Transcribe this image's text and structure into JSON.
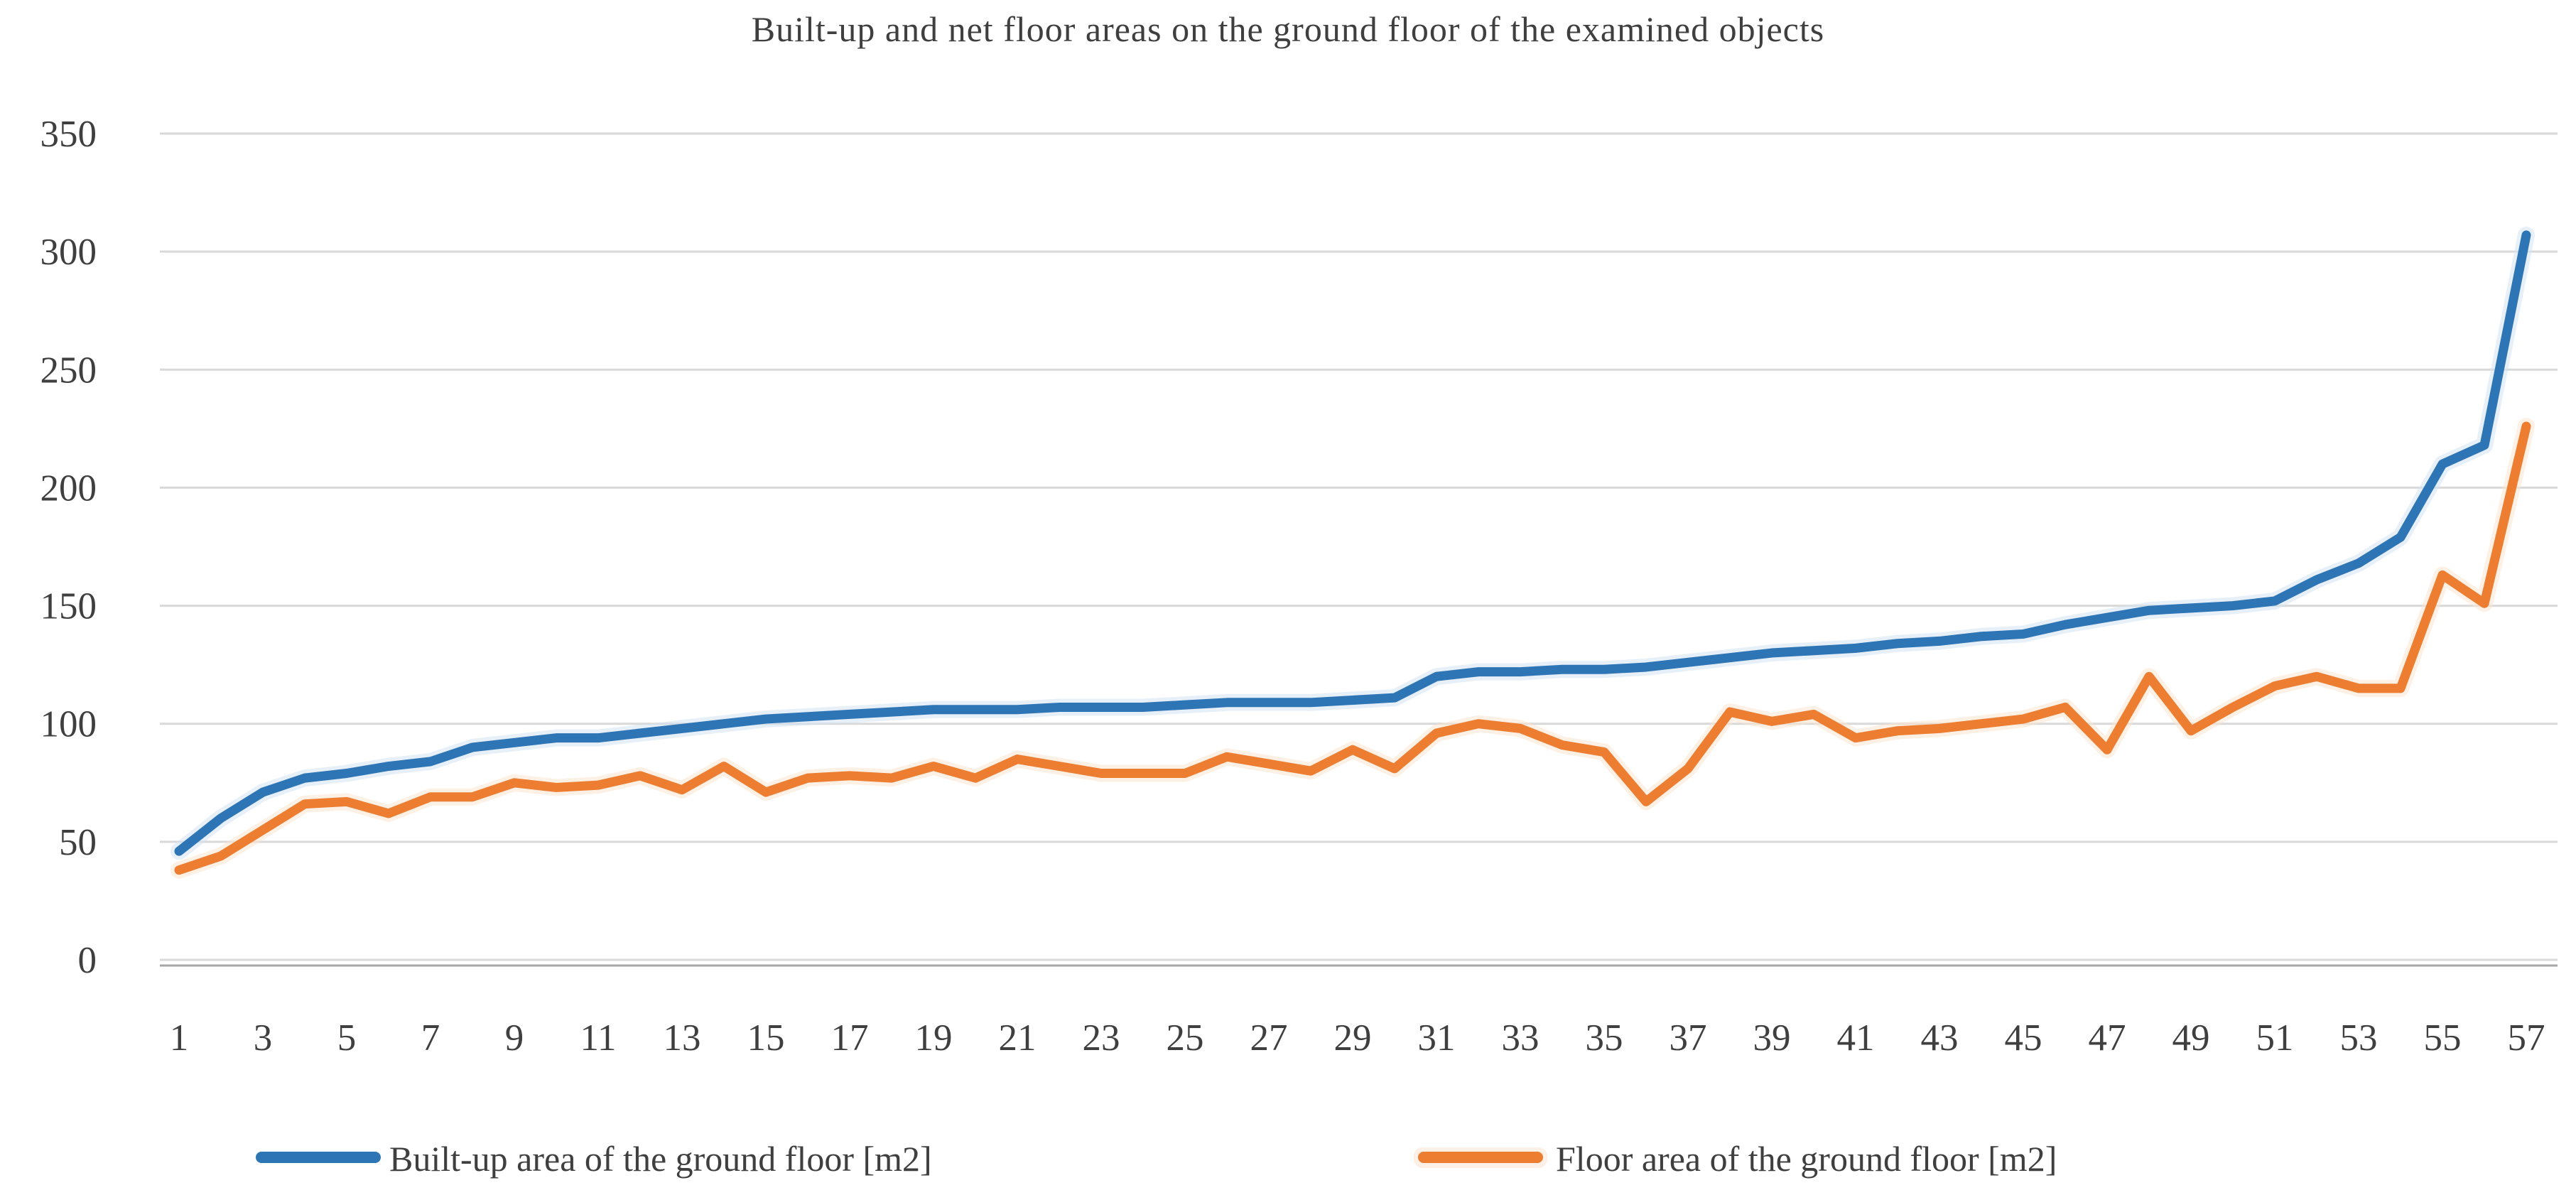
{
  "title": "Built-up and net floor areas on the ground floor of the examined objects",
  "colors": {
    "series_blue": "#2E75B6",
    "series_blue_halo": "#D3E3F2",
    "series_orange": "#ED7D31",
    "series_orange_halo": "#FBE3D0",
    "grid": "#D9D9D9",
    "axis": "#A6A6A6",
    "text": "#3F3F3F",
    "background": "#FFFFFF"
  },
  "legend": {
    "items": [
      {
        "label": "Built-up area of the ground floor [m2]",
        "color": "#2E75B6"
      },
      {
        "label": "Floor area of the ground floor [m2]",
        "color": "#ED7D31"
      }
    ]
  },
  "chart_data": {
    "type": "line",
    "title": "Built-up and net floor areas on the ground floor of the examined objects",
    "xlabel": "",
    "ylabel": "",
    "x": [
      1,
      2,
      3,
      4,
      5,
      6,
      7,
      8,
      9,
      10,
      11,
      12,
      13,
      14,
      15,
      16,
      17,
      18,
      19,
      20,
      21,
      22,
      23,
      24,
      25,
      26,
      27,
      28,
      29,
      30,
      31,
      32,
      33,
      34,
      35,
      36,
      37,
      38,
      39,
      40,
      41,
      42,
      43,
      44,
      45,
      46,
      47,
      48,
      49,
      50,
      51,
      52,
      53,
      54,
      55,
      56,
      57
    ],
    "x_tick_labels": [
      "1",
      "3",
      "5",
      "7",
      "9",
      "11",
      "13",
      "15",
      "17",
      "19",
      "21",
      "23",
      "25",
      "27",
      "29",
      "31",
      "33",
      "35",
      "37",
      "39",
      "41",
      "43",
      "45",
      "47",
      "49",
      "51",
      "53",
      "55",
      "57"
    ],
    "ylim": [
      0,
      350
    ],
    "yticks": [
      0,
      50,
      100,
      150,
      200,
      250,
      300,
      350
    ],
    "grid": true,
    "legend_position": "bottom",
    "series": [
      {
        "name": "Built-up area of the ground floor [m2]",
        "color": "#2E75B6",
        "halo": "#D3E3F2",
        "values": [
          46,
          60,
          71,
          77,
          79,
          82,
          84,
          90,
          92,
          94,
          94,
          96,
          98,
          100,
          102,
          103,
          104,
          105,
          106,
          106,
          106,
          107,
          107,
          107,
          108,
          109,
          109,
          109,
          110,
          111,
          120,
          122,
          122,
          123,
          123,
          124,
          126,
          128,
          130,
          131,
          132,
          134,
          135,
          137,
          138,
          142,
          145,
          148,
          149,
          150,
          152,
          161,
          168,
          179,
          210,
          218,
          307
        ]
      },
      {
        "name": "Floor area of the ground floor [m2]",
        "color": "#ED7D31",
        "halo": "#FBE3D0",
        "values": [
          38,
          44,
          55,
          66,
          67,
          62,
          69,
          69,
          75,
          73,
          74,
          78,
          72,
          82,
          71,
          77,
          78,
          77,
          82,
          77,
          85,
          82,
          79,
          79,
          79,
          86,
          83,
          80,
          89,
          81,
          96,
          100,
          98,
          91,
          88,
          67,
          81,
          105,
          101,
          104,
          94,
          97,
          98,
          100,
          102,
          107,
          89,
          120,
          97,
          107,
          116,
          120,
          115,
          115,
          163,
          151,
          226
        ]
      }
    ]
  }
}
